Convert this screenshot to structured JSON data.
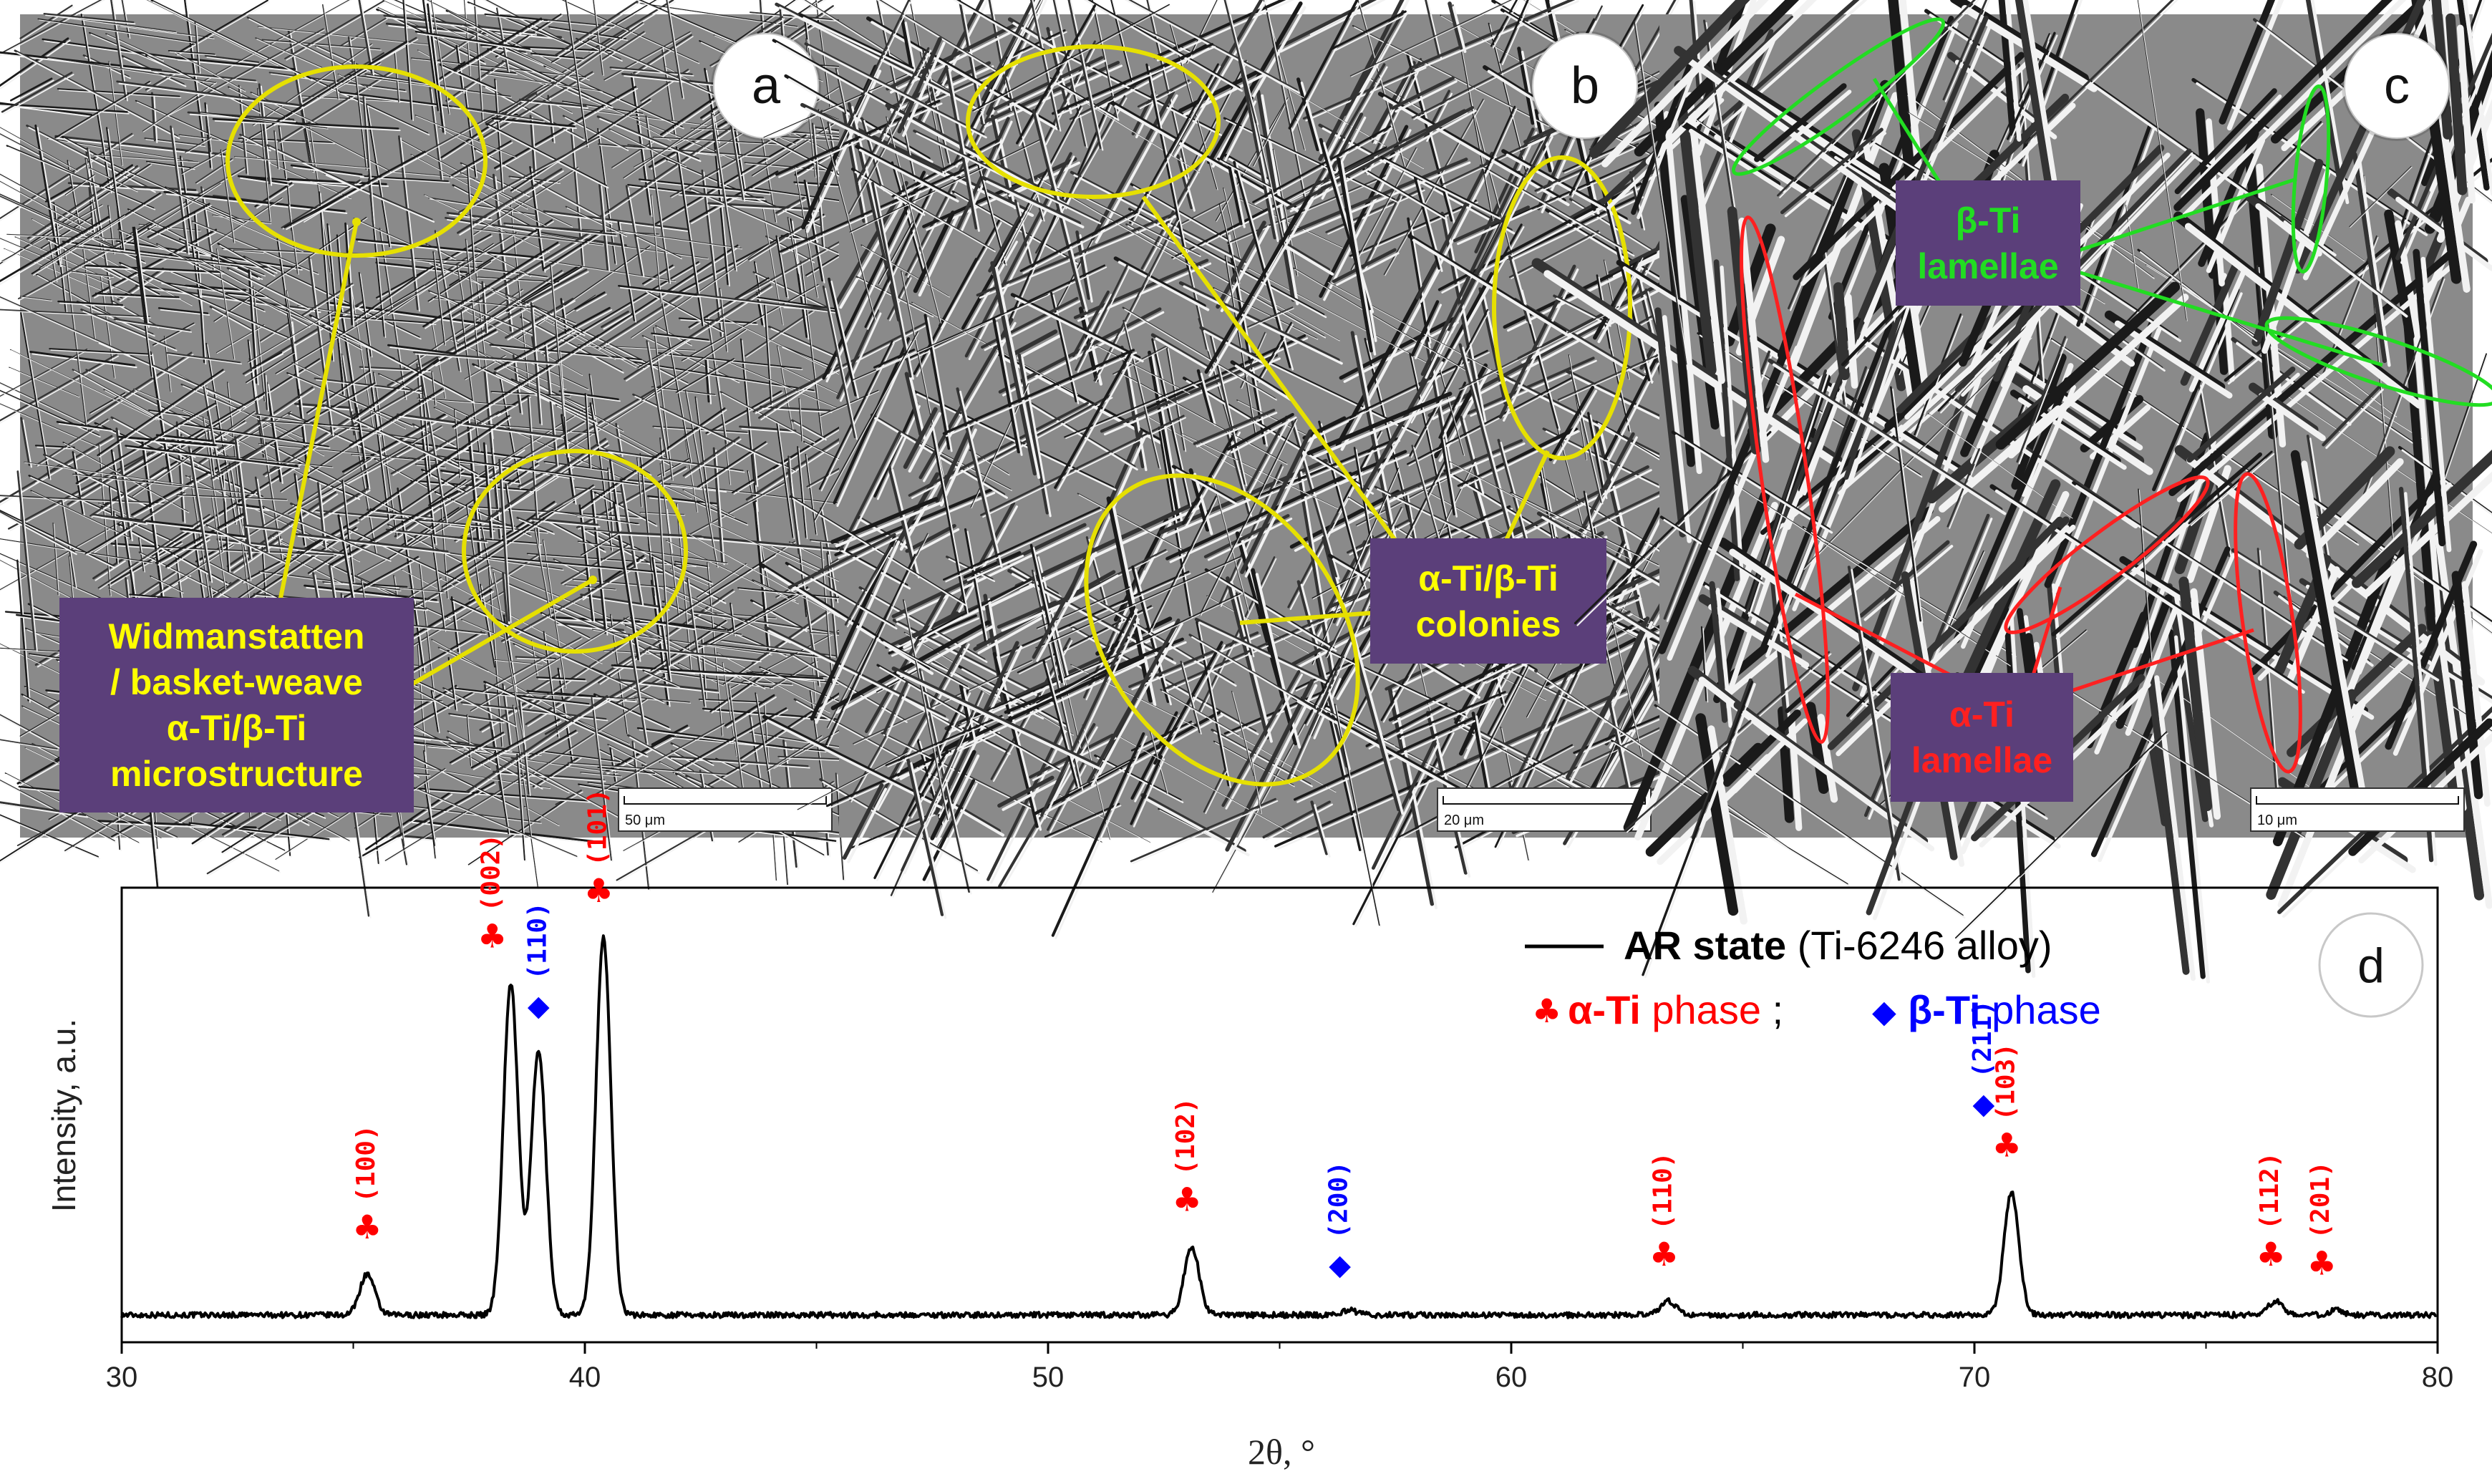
{
  "panels": {
    "a": {
      "label": "a",
      "callout_lines": [
        "Widmanstatten",
        "/ basket-weave",
        "α-Ti/β-Ti",
        "microstructure"
      ],
      "scale_bar": "50 μm",
      "colors": {
        "callout_text": "#ffff00",
        "callout_bg": "#5b3f7a",
        "marker": "#e6e000"
      }
    },
    "b": {
      "label": "b",
      "callout_lines": [
        "α-Ti/β-Ti",
        "colonies"
      ],
      "scale_bar": "20 μm",
      "colors": {
        "callout_text": "#ffff00",
        "callout_bg": "#5b3f7a",
        "marker": "#e6e000"
      }
    },
    "c": {
      "label": "c",
      "beta_lines": [
        "β-Ti",
        "lamellae"
      ],
      "alpha_lines": [
        "α-Ti",
        "lamellae"
      ],
      "scale_bar": "10 μm",
      "colors": {
        "beta": "#22dd22",
        "alpha": "#ff2020",
        "callout_bg": "#5b3f7a"
      }
    }
  },
  "xrd": {
    "panel_label": "d",
    "legend_series": "AR state",
    "legend_series_suffix": " (Ti-6246 alloy)",
    "legend_alpha_name": "α-Ti",
    "legend_alpha_suffix": " phase",
    "legend_separator": " ; ",
    "legend_beta_name": "β-Ti",
    "legend_beta_suffix": " phase",
    "colors": {
      "alpha": "#ff0000",
      "beta": "#0000ff",
      "line": "#000000"
    }
  },
  "chart_data": {
    "type": "line",
    "xlabel": "2θ, °",
    "ylabel": "Intensity, a.u.",
    "xlim": [
      30,
      80
    ],
    "ylim": [
      0,
      1
    ],
    "xticks": [
      30,
      40,
      50,
      60,
      70,
      80
    ],
    "grid": false,
    "legend_position": "top-right",
    "series": [
      {
        "name": "AR state (Ti-6246 alloy)",
        "baseline": 0.06,
        "peaks": [
          {
            "x": 35.3,
            "y": 0.15
          },
          {
            "x": 38.4,
            "y": 0.79
          },
          {
            "x": 39.0,
            "y": 0.64
          },
          {
            "x": 40.4,
            "y": 0.89
          },
          {
            "x": 53.1,
            "y": 0.21
          },
          {
            "x": 56.5,
            "y": 0.07
          },
          {
            "x": 63.4,
            "y": 0.09
          },
          {
            "x": 70.8,
            "y": 0.33
          },
          {
            "x": 76.5,
            "y": 0.09
          },
          {
            "x": 77.8,
            "y": 0.07
          }
        ]
      }
    ],
    "annotations": [
      {
        "text": "(100)",
        "phase": "alpha",
        "x": 35.3
      },
      {
        "text": "(002)",
        "phase": "alpha",
        "x": 38.0
      },
      {
        "text": "(110)",
        "phase": "beta",
        "x": 39.0
      },
      {
        "text": "(101)",
        "phase": "alpha",
        "x": 40.3
      },
      {
        "text": "(102)",
        "phase": "alpha",
        "x": 53.0
      },
      {
        "text": "(200)",
        "phase": "beta",
        "x": 56.3
      },
      {
        "text": "(110)",
        "phase": "alpha",
        "x": 63.3
      },
      {
        "text": "(211)",
        "phase": "beta",
        "x": 70.2
      },
      {
        "text": "(103)",
        "phase": "alpha",
        "x": 70.7
      },
      {
        "text": "(112)",
        "phase": "alpha",
        "x": 76.4
      },
      {
        "text": "(201)",
        "phase": "alpha",
        "x": 77.5
      }
    ]
  }
}
